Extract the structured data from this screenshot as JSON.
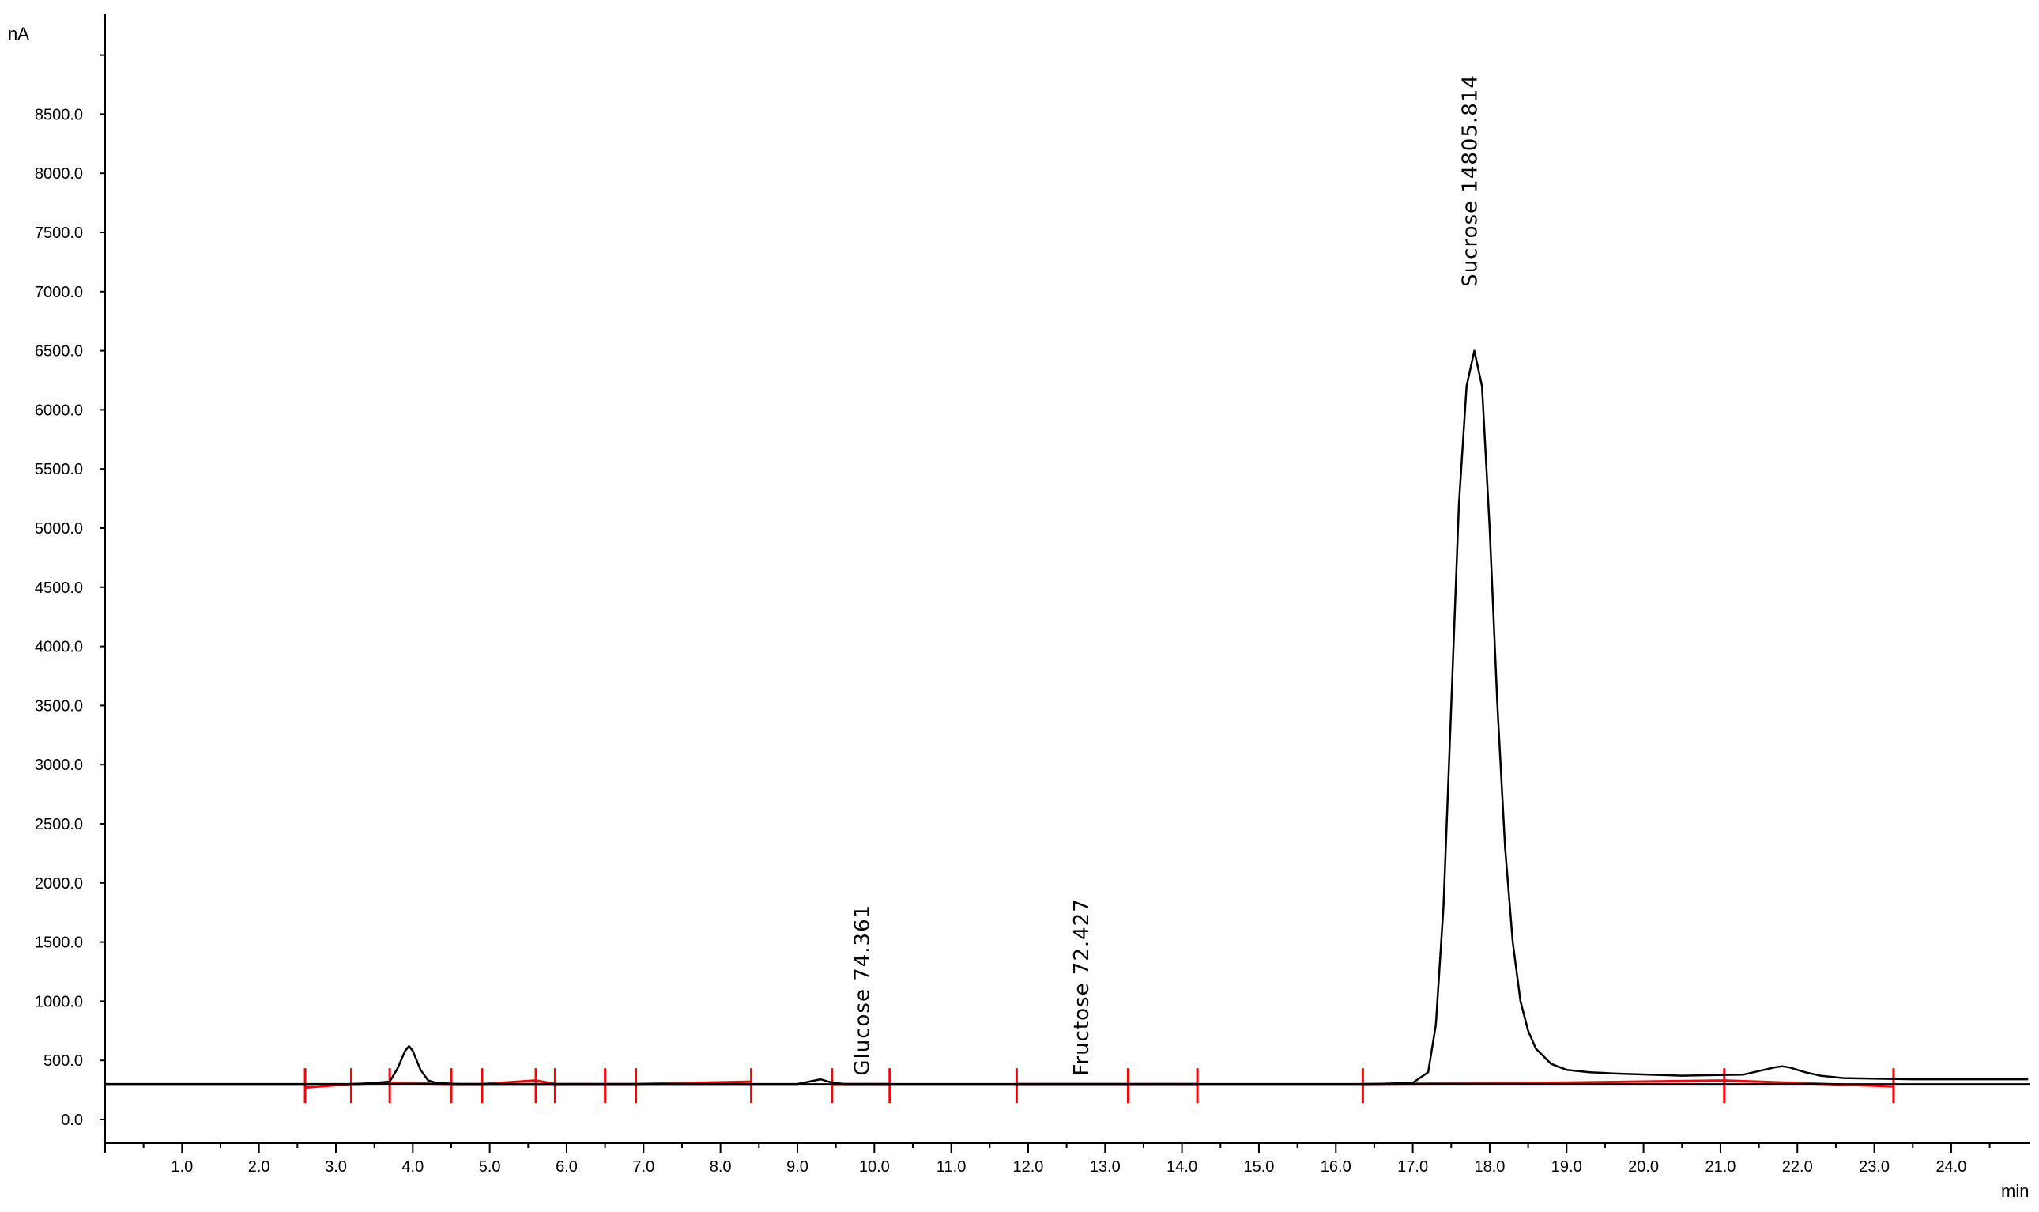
{
  "chart_data": {
    "type": "line",
    "title": "",
    "xlabel": "min",
    "ylabel": "nA",
    "xlim": [
      0,
      25.0
    ],
    "ylim": [
      0,
      9500
    ],
    "baseline": 300,
    "grid": false,
    "legend": "none",
    "x_ticks": [
      "1.0",
      "2.0",
      "3.0",
      "4.0",
      "5.0",
      "6.0",
      "7.0",
      "8.0",
      "9.0",
      "10.0",
      "11.0",
      "12.0",
      "13.0",
      "14.0",
      "15.0",
      "16.0",
      "17.0",
      "18.0",
      "19.0",
      "20.0",
      "21.0",
      "22.0",
      "23.0",
      "24.0"
    ],
    "y_ticks": [
      "0.0",
      "500.0",
      "1000.0",
      "1500.0",
      "2000.0",
      "2500.0",
      "3000.0",
      "3500.0",
      "4000.0",
      "4500.0",
      "5000.0",
      "5500.0",
      "6000.0",
      "6500.0",
      "7000.0",
      "7500.0",
      "8000.0",
      "8500.0"
    ],
    "series": [
      {
        "color": "#000000",
        "x": [
          0,
          2.5,
          3.3,
          3.5,
          3.7,
          3.8,
          3.9,
          3.95,
          4.0,
          4.1,
          4.2,
          4.3,
          4.6,
          5.5,
          6.0,
          6.5,
          7.0,
          8.0,
          9.0,
          9.3,
          9.4,
          9.6,
          10.5,
          12.0,
          13.5,
          15.0,
          16.5,
          17.0,
          17.2,
          17.3,
          17.4,
          17.5,
          17.6,
          17.7,
          17.8,
          17.9,
          18.0,
          18.1,
          18.2,
          18.3,
          18.4,
          18.5,
          18.6,
          18.8,
          19.0,
          19.3,
          19.6,
          20.5,
          21.3,
          21.5,
          21.7,
          21.8,
          21.9,
          22.1,
          22.3,
          22.6,
          23.5,
          25.0
        ],
        "y": [
          300,
          300,
          300,
          310,
          320,
          430,
          580,
          620,
          580,
          420,
          330,
          310,
          300,
          300,
          300,
          300,
          300,
          300,
          300,
          340,
          320,
          300,
          300,
          300,
          300,
          300,
          300,
          310,
          400,
          800,
          1800,
          3500,
          5200,
          6200,
          6500,
          6200,
          5000,
          3500,
          2300,
          1500,
          1000,
          750,
          600,
          470,
          420,
          400,
          390,
          370,
          380,
          410,
          440,
          450,
          440,
          400,
          370,
          350,
          340,
          340
        ]
      }
    ],
    "integration_baseline": {
      "color": "#ff0000",
      "segments": [
        [
          2.6,
          3.2,
          270,
          300
        ],
        [
          3.2,
          3.7,
          300,
          310
        ],
        [
          3.7,
          4.5,
          310,
          300
        ],
        [
          4.5,
          4.9,
          300,
          300
        ],
        [
          4.9,
          5.6,
          300,
          330
        ],
        [
          5.6,
          5.85,
          330,
          300
        ],
        [
          5.85,
          6.5,
          300,
          300
        ],
        [
          6.5,
          6.9,
          300,
          300
        ],
        [
          6.9,
          8.4,
          300,
          320
        ],
        [
          9.45,
          10.2,
          300,
          300
        ],
        [
          11.85,
          13.3,
          300,
          300
        ],
        [
          13.3,
          14.2,
          300,
          300
        ],
        [
          16.35,
          18.7,
          300,
          310
        ],
        [
          18.7,
          21.05,
          310,
          330
        ],
        [
          21.05,
          23.25,
          330,
          280
        ]
      ],
      "markers": [
        2.6,
        3.2,
        3.7,
        4.5,
        4.9,
        5.6,
        5.85,
        6.5,
        6.9,
        8.4,
        9.45,
        10.2,
        11.85,
        13.3,
        14.2,
        16.35,
        21.05,
        23.25
      ]
    },
    "annotations": [
      {
        "text": "Glucose 74.361",
        "x": 9.85,
        "y": 330
      },
      {
        "text": "Fructose 72.427",
        "x": 12.7,
        "y": 330
      },
      {
        "text": "Sucrose 14805.814",
        "x": 17.75,
        "y": 7000
      }
    ]
  }
}
